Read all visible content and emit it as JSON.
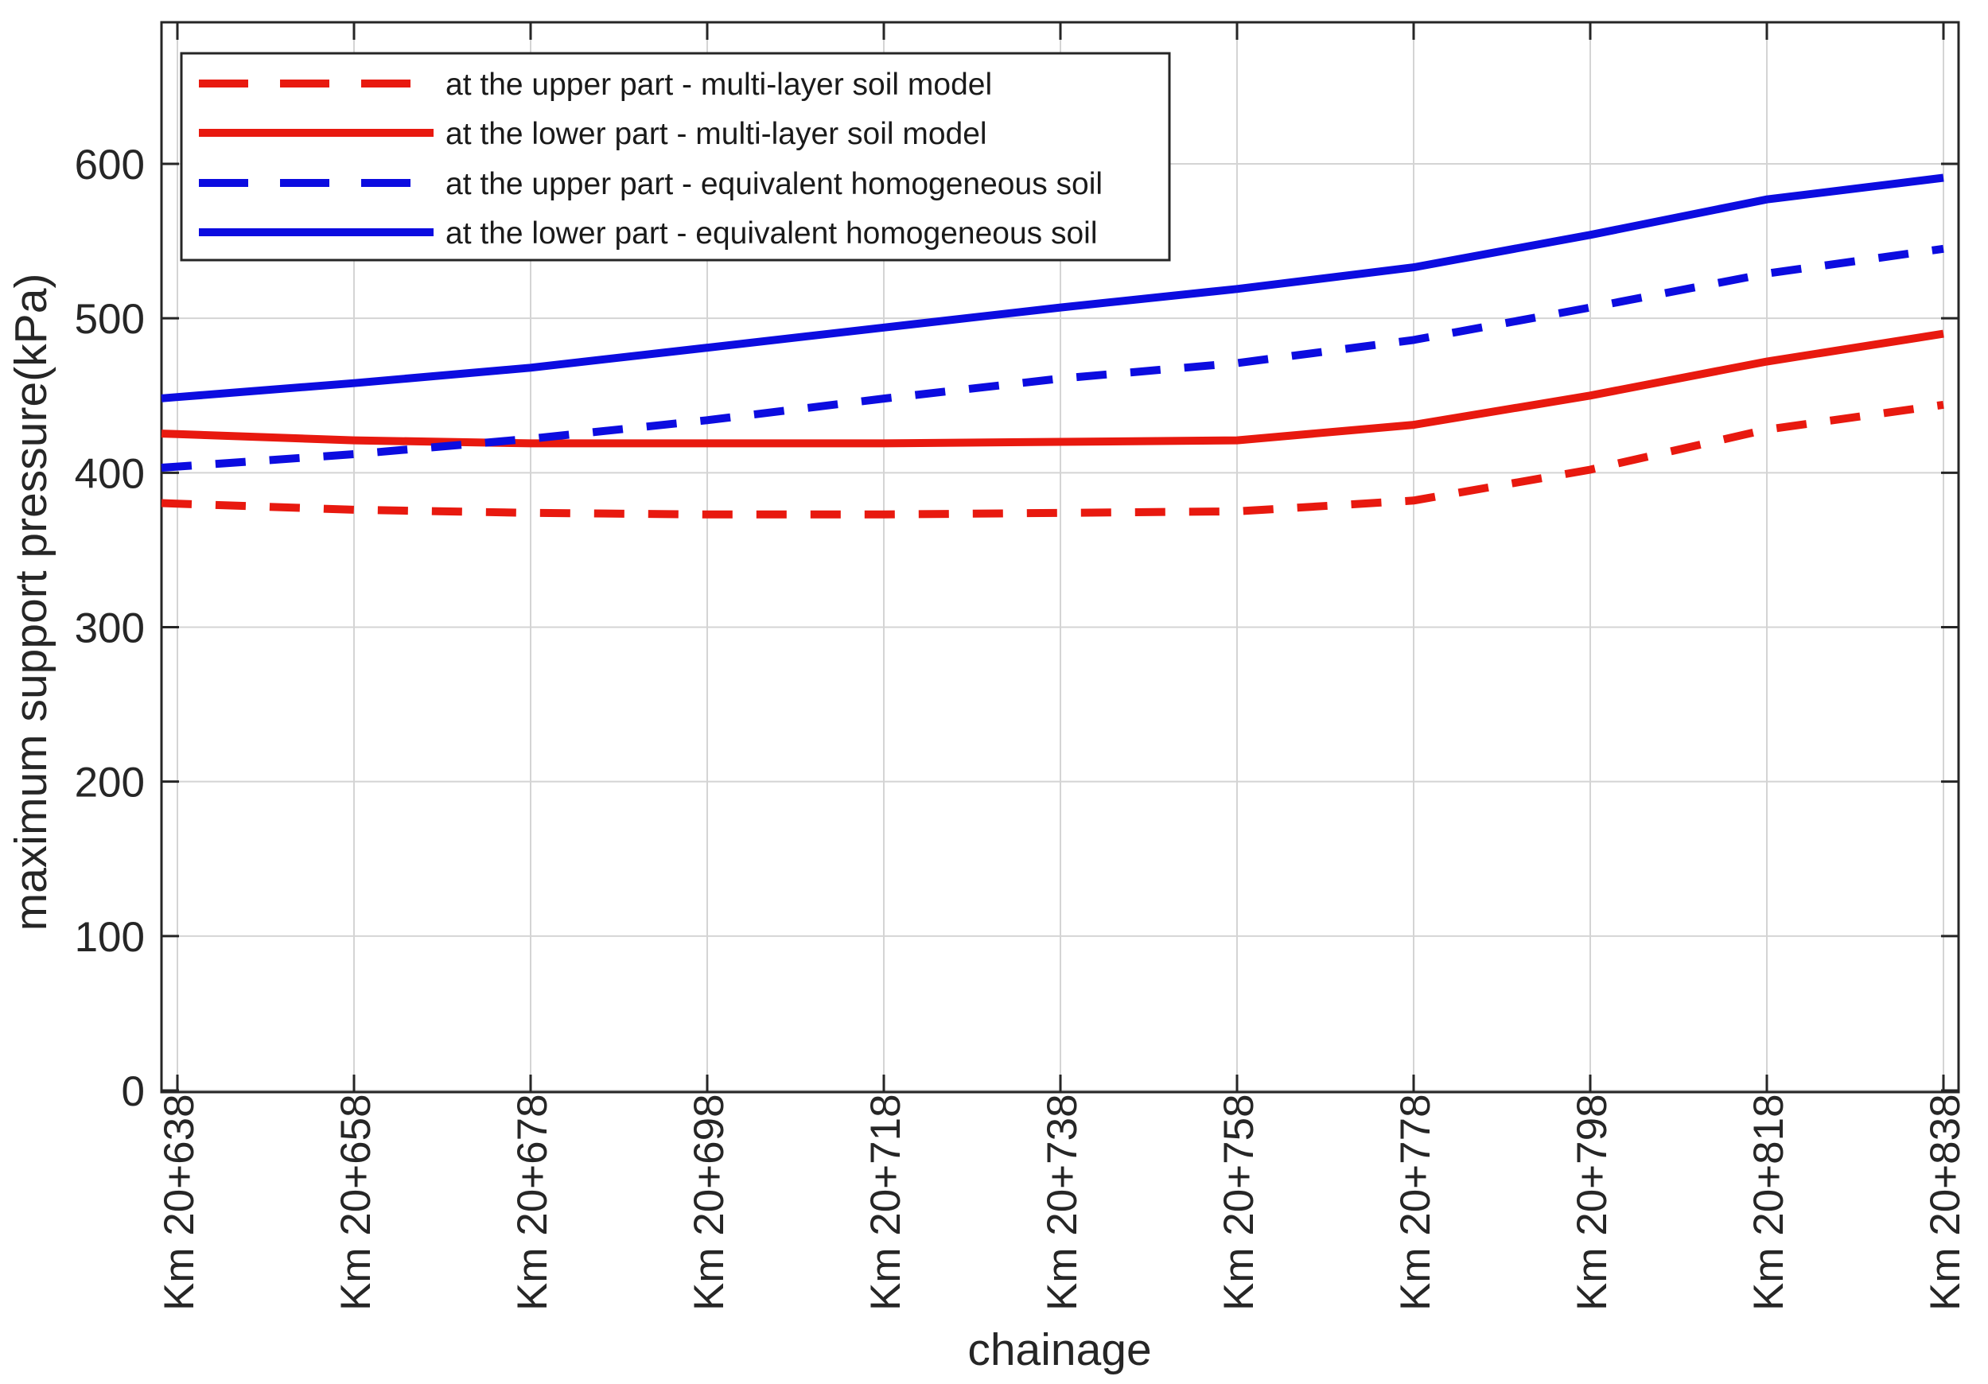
{
  "figure": {
    "background": "#ffffff",
    "frame_color": "#262626",
    "grid_color": "#d4d4d4"
  },
  "chart_data": {
    "type": "line",
    "xlabel": "chainage",
    "ylabel": "maximum support pressure(kPa)",
    "categories": [
      "Km 20+638",
      "Km 20+658",
      "Km 20+678",
      "Km 20+698",
      "Km 20+718",
      "Km 20+738",
      "Km 20+758",
      "Km 20+778",
      "Km 20+798",
      "Km 20+818",
      "Km 20+838"
    ],
    "yticks": [
      0,
      100,
      200,
      300,
      400,
      500,
      600
    ],
    "ylim": [
      0,
      691
    ],
    "grid": true,
    "legend_position": "top-left",
    "series": [
      {
        "label": "at the upper part - multi-layer soil model",
        "color": "#e8190f",
        "style": "dashed",
        "values": [
          380,
          376,
          374,
          373,
          373,
          374,
          375,
          382,
          402,
          428,
          444
        ]
      },
      {
        "label": "at the lower part - multi-layer soil model",
        "color": "#e8190f",
        "style": "solid",
        "values": [
          425,
          421,
          419,
          419,
          419,
          420,
          421,
          431,
          450,
          472,
          490
        ]
      },
      {
        "label": "at the upper part - equivalent homogeneous soil",
        "color": "#0c0ce0",
        "style": "dashed",
        "values": [
          404,
          412,
          422,
          434,
          448,
          461,
          471,
          486,
          507,
          529,
          545
        ]
      },
      {
        "label": "at the lower part - equivalent homogeneous soil",
        "color": "#0c0ce0",
        "style": "solid",
        "values": [
          449,
          458,
          468,
          481,
          494,
          507,
          519,
          533,
          554,
          577,
          591
        ]
      }
    ]
  }
}
